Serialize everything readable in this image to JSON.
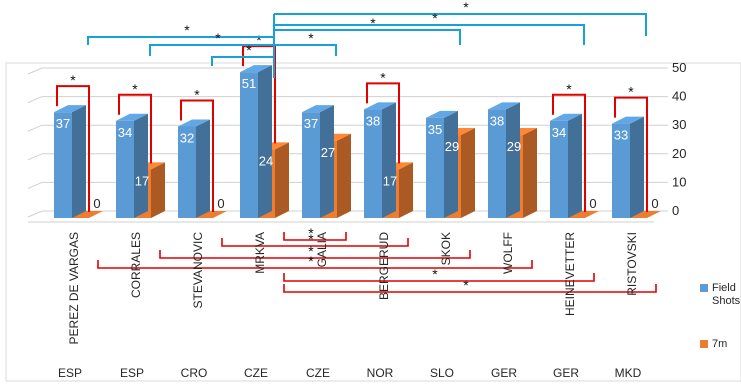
{
  "chart_data": {
    "type": "bar",
    "title": "",
    "categories": [
      "PEREZ DE VARGAS",
      "CORRALES",
      "STEVANOVIC",
      "MRKVA",
      "GALIA",
      "BERGERUD",
      "SKOK",
      "WOLFF",
      "HEINEVETTER",
      "RISTOVSKI"
    ],
    "countries": [
      "ESP",
      "ESP",
      "CRO",
      "CZE",
      "CZE",
      "NOR",
      "SLO",
      "GER",
      "GER",
      "MKD"
    ],
    "series": [
      {
        "name": "Field Shots",
        "color": "#5b9bd5",
        "values": [
          37,
          34,
          32,
          51,
          37,
          38,
          35,
          38,
          34,
          33
        ]
      },
      {
        "name": "7m",
        "color": "#ed7d31",
        "values": [
          0,
          17,
          0,
          24,
          27,
          17,
          29,
          29,
          0,
          0
        ]
      }
    ],
    "ylim": [
      0,
      50
    ],
    "yticks": [
      0,
      10,
      20,
      30,
      40,
      50
    ],
    "significance_marker": "*",
    "significance_top": [
      [
        3,
        0
      ],
      [
        3,
        1
      ],
      [
        3,
        2
      ],
      [
        3,
        4
      ],
      [
        3,
        6
      ],
      [
        3,
        8
      ],
      [
        3,
        9
      ]
    ],
    "significance_bottom": [
      [
        3,
        4
      ],
      [
        2,
        5
      ],
      [
        1,
        6
      ],
      [
        0,
        7
      ],
      [
        3,
        8
      ],
      [
        3,
        9
      ]
    ],
    "significance_within_categories": [
      0,
      1,
      2,
      3,
      5,
      8,
      9
    ],
    "legend_position": "right"
  }
}
